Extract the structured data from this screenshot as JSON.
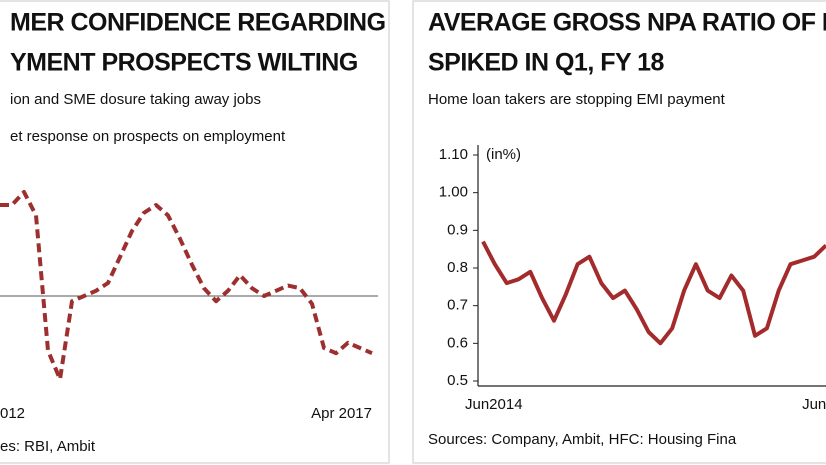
{
  "chart_data": [
    {
      "type": "line",
      "title_lines": [
        "MER CONFIDENCE REGARDING",
        "YMENT PROSPECTS WILTING"
      ],
      "subtitle": "ion and SME dosure taking away jobs",
      "note": "et response on prospects on employment",
      "source": "es: RBI, Ambit",
      "categories": [
        null,
        "012",
        null,
        null,
        null,
        null,
        null,
        null,
        null,
        null,
        null,
        null,
        null,
        null,
        null,
        null,
        null,
        null,
        null,
        null,
        null,
        null,
        null,
        null,
        null,
        null,
        null,
        null,
        null,
        null,
        null,
        "Apr 2017"
      ],
      "series": [
        {
          "color": "#9e2f2f",
          "dashed": true,
          "values": [
            75,
            75,
            80,
            71,
            19,
            8,
            38,
            40,
            42,
            45,
            55,
            65,
            72,
            75,
            71,
            62,
            52,
            43,
            38,
            42,
            48,
            43,
            40,
            42,
            44,
            43,
            37,
            20,
            18,
            22,
            20,
            18
          ]
        }
      ],
      "ylim": [
        0,
        100
      ],
      "hline": 40
    },
    {
      "type": "line",
      "title_lines": [
        "AVERAGE GROSS NPA RATIO OF HF",
        "SPIKED IN Q1, FY 18"
      ],
      "subtitle": "Home loan takers are stopping EMI payment",
      "y_label": "(in%)",
      "source": "Sources: Company, Ambit, HFC: Housing Fina",
      "categories": [
        "Jun2014",
        null,
        null,
        null,
        null,
        null,
        null,
        null,
        null,
        null,
        null,
        null,
        null,
        null,
        null,
        null,
        null,
        null,
        null,
        null,
        null,
        null,
        null,
        null,
        null,
        null,
        null,
        null,
        "Jun",
        null
      ],
      "series": [
        {
          "color": "#a32b2b",
          "dashed": false,
          "values": [
            0.87,
            0.81,
            0.76,
            0.77,
            0.79,
            0.72,
            0.66,
            0.73,
            0.81,
            0.83,
            0.76,
            0.72,
            0.74,
            0.69,
            0.63,
            0.6,
            0.64,
            0.74,
            0.81,
            0.74,
            0.72,
            0.78,
            0.74,
            0.62,
            0.64,
            0.74,
            0.81,
            0.82,
            0.83,
            0.86
          ]
        }
      ],
      "ylim": [
        0.5,
        1.1
      ],
      "yticks": [
        0.5,
        0.6,
        0.7,
        0.8,
        0.9,
        {
          "value": 1.0,
          "label": "1.00"
        },
        {
          "value": 1.1,
          "label": "1.10"
        }
      ]
    }
  ]
}
